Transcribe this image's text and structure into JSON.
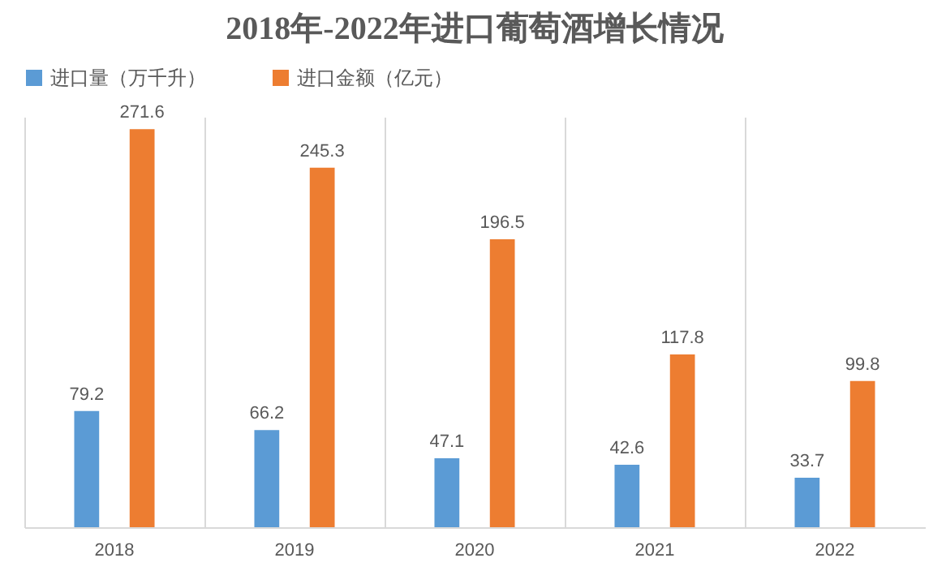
{
  "chart_data": {
    "type": "bar",
    "title": "2018年-2022年进口葡萄酒增长情况",
    "categories": [
      "2018",
      "2019",
      "2020",
      "2021",
      "2022"
    ],
    "series": [
      {
        "name": "进口量（万千升）",
        "color": "#5b9bd5",
        "values": [
          79.2,
          66.2,
          47.1,
          42.6,
          33.7
        ]
      },
      {
        "name": "进口金额（亿元）",
        "color": "#ed7d31",
        "values": [
          271.6,
          245.3,
          196.5,
          117.8,
          99.8
        ]
      }
    ],
    "data_labels": true,
    "grid": "x",
    "legend": "top"
  }
}
